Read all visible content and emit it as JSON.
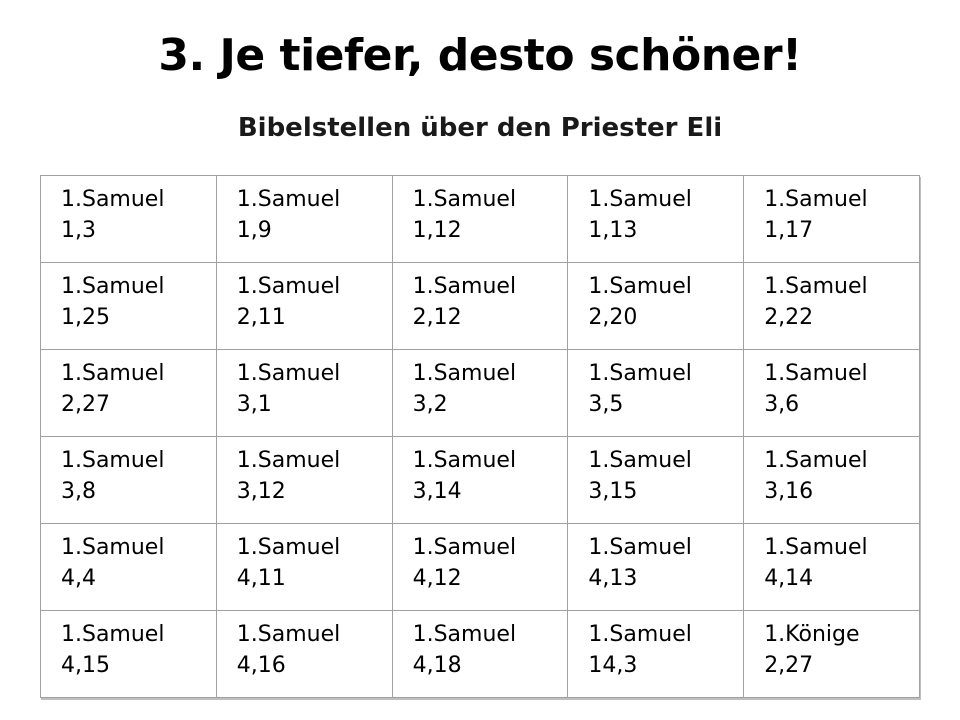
{
  "slide": {
    "title": "3. Je tiefer, desto schöner!",
    "subtitle": "Bibelstellen über den Priester Eli"
  },
  "table": {
    "rows": [
      [
        {
          "book": "1.Samuel",
          "verse": "1,3"
        },
        {
          "book": "1.Samuel",
          "verse": "1,9"
        },
        {
          "book": "1.Samuel",
          "verse": "1,12"
        },
        {
          "book": "1.Samuel",
          "verse": "1,13"
        },
        {
          "book": "1.Samuel",
          "verse": "1,17"
        }
      ],
      [
        {
          "book": "1.Samuel",
          "verse": "1,25"
        },
        {
          "book": "1.Samuel",
          "verse": "2,11"
        },
        {
          "book": "1.Samuel",
          "verse": "2,12"
        },
        {
          "book": "1.Samuel",
          "verse": "2,20"
        },
        {
          "book": "1.Samuel",
          "verse": "2,22"
        }
      ],
      [
        {
          "book": "1.Samuel",
          "verse": "2,27"
        },
        {
          "book": "1.Samuel",
          "verse": "3,1"
        },
        {
          "book": "1.Samuel",
          "verse": "3,2"
        },
        {
          "book": "1.Samuel",
          "verse": "3,5"
        },
        {
          "book": "1.Samuel",
          "verse": "3,6"
        }
      ],
      [
        {
          "book": "1.Samuel",
          "verse": "3,8"
        },
        {
          "book": "1.Samuel",
          "verse": "3,12"
        },
        {
          "book": "1.Samuel",
          "verse": "3,14"
        },
        {
          "book": "1.Samuel",
          "verse": "3,15"
        },
        {
          "book": "1.Samuel",
          "verse": "3,16"
        }
      ],
      [
        {
          "book": "1.Samuel",
          "verse": "4,4"
        },
        {
          "book": "1.Samuel",
          "verse": "4,11"
        },
        {
          "book": "1.Samuel",
          "verse": "4,12"
        },
        {
          "book": "1.Samuel",
          "verse": "4,13"
        },
        {
          "book": "1.Samuel",
          "verse": "4,14"
        }
      ],
      [
        {
          "book": "1.Samuel",
          "verse": "4,15"
        },
        {
          "book": "1.Samuel",
          "verse": "4,16"
        },
        {
          "book": "1.Samuel",
          "verse": "4,18"
        },
        {
          "book": "1.Samuel",
          "verse": "14,3"
        },
        {
          "book": "1.Könige",
          "verse": "2,27"
        }
      ]
    ]
  }
}
